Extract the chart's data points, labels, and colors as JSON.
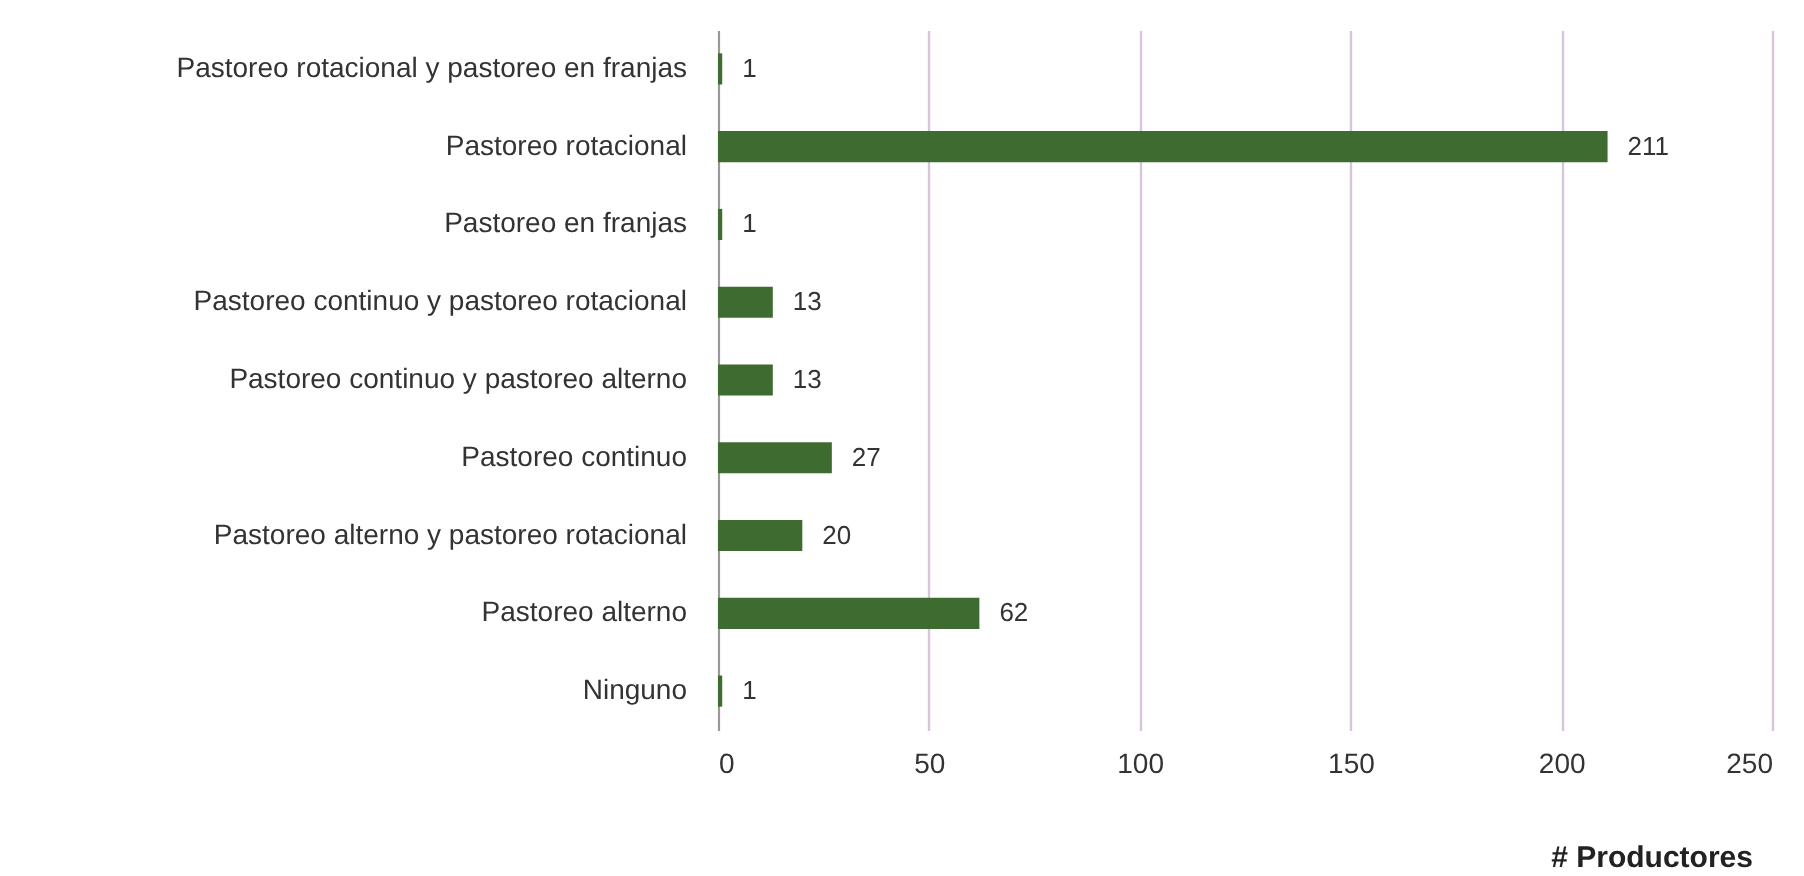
{
  "chart_data": {
    "type": "bar",
    "orientation": "horizontal",
    "xlabel": "# Productores",
    "categories": [
      "Pastoreo rotacional y pastoreo en franjas",
      "Pastoreo rotacional",
      "Pastoreo en franjas",
      "Pastoreo continuo y pastoreo rotacional",
      "Pastoreo continuo y pastoreo alterno",
      "Pastoreo continuo",
      "Pastoreo alterno y pastoreo rotacional",
      "Pastoreo alterno",
      "Ninguno"
    ],
    "values": [
      1,
      211,
      1,
      13,
      13,
      27,
      20,
      62,
      1
    ],
    "color": "#3e6b2f",
    "xlim": [
      0,
      250
    ],
    "xticks": [
      0,
      50,
      100,
      150,
      200,
      250
    ],
    "grid": "x",
    "data_labels": true
  }
}
